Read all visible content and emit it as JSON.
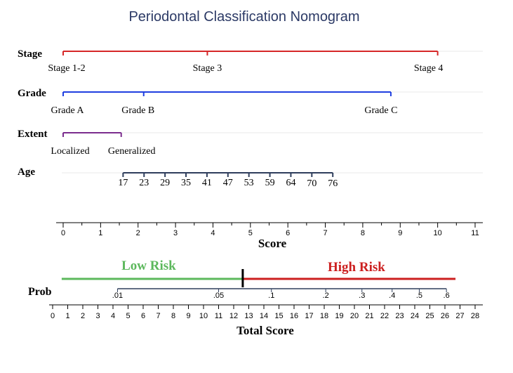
{
  "chart_data": {
    "type": "nomogram",
    "title": "Periodontal Classification Nomogram",
    "score_axis": {
      "label": "Score",
      "ticks": [
        "0",
        "1",
        "2",
        "3",
        "4",
        "5",
        "6",
        "7",
        "8",
        "9",
        "10",
        "11"
      ],
      "range": [
        0,
        11
      ]
    },
    "variables": [
      {
        "name": "Stage",
        "color": "#d62728",
        "points": [
          {
            "label": "Stage 1-2",
            "score": 0
          },
          {
            "label": "Stage 3",
            "score": 3.85
          },
          {
            "label": "Stage 4",
            "score": 10
          }
        ]
      },
      {
        "name": "Grade",
        "color": "#1f3fe0",
        "points": [
          {
            "label": "Grade A",
            "score": 0
          },
          {
            "label": "Grade B",
            "score": 2.15
          },
          {
            "label": "Grade C",
            "score": 8.75
          }
        ]
      },
      {
        "name": "Extent",
        "color": "#7b2d8e",
        "points": [
          {
            "label": "Localized",
            "score": 0
          },
          {
            "label": "Generalized",
            "score": 1.55
          }
        ]
      },
      {
        "name": "Age",
        "color": "#2f3e5c",
        "points": [
          {
            "label": "17",
            "score": 1.6
          },
          {
            "label": "23",
            "score": 2.16
          },
          {
            "label": "29",
            "score": 2.72
          },
          {
            "label": "35",
            "score": 3.28
          },
          {
            "label": "41",
            "score": 3.84
          },
          {
            "label": "47",
            "score": 4.4
          },
          {
            "label": "53",
            "score": 4.96
          },
          {
            "label": "59",
            "score": 5.52
          },
          {
            "label": "64",
            "score": 6.08
          },
          {
            "label": "70",
            "score": 6.64
          },
          {
            "label": "76",
            "score": 7.2
          }
        ]
      }
    ],
    "risk": {
      "low_label": "Low Risk",
      "low_color": "#5cb85c",
      "high_label": "High Risk",
      "high_color": "#cc1f1f",
      "low_start": 0.6,
      "cutoff": 12.6,
      "high_end": 26.7
    },
    "prob_axis": {
      "label": "Prob",
      "ticks": [
        {
          "label": ".01",
          "total": 4.3
        },
        {
          "label": ".05",
          "total": 11.0
        },
        {
          "label": ".1",
          "total": 14.5
        },
        {
          "label": ".2",
          "total": 18.1
        },
        {
          "label": ".3",
          "total": 20.5
        },
        {
          "label": ".4",
          "total": 22.5
        },
        {
          "label": ".5",
          "total": 24.3
        },
        {
          "label": ".6",
          "total": 26.1
        }
      ]
    },
    "total_axis": {
      "label": "Total Score",
      "ticks": [
        "0",
        "1",
        "2",
        "3",
        "4",
        "5",
        "6",
        "7",
        "8",
        "9",
        "10",
        "11",
        "12",
        "13",
        "14",
        "15",
        "16",
        "17",
        "18",
        "19",
        "20",
        "21",
        "22",
        "23",
        "24",
        "25",
        "26",
        "27",
        "28"
      ],
      "range": [
        0,
        28
      ]
    }
  }
}
